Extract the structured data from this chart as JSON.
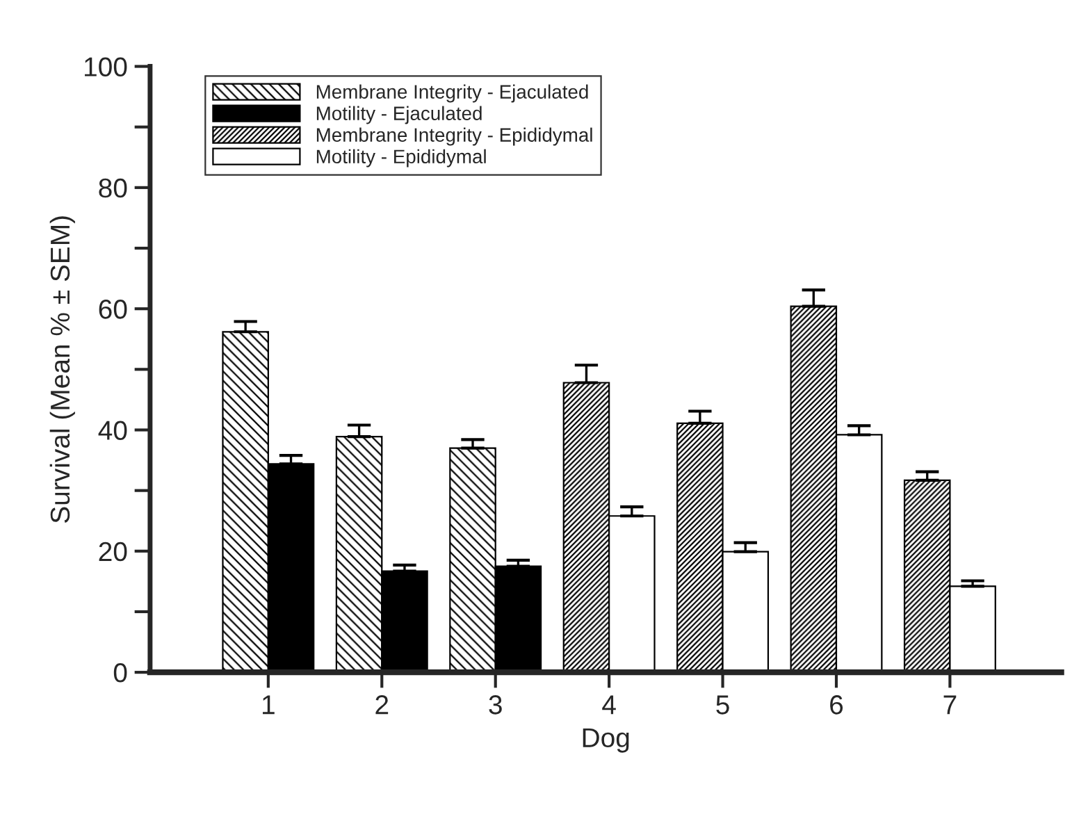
{
  "chart_data": {
    "type": "bar",
    "xlabel": "Dog",
    "ylabel": "Survival (Mean % ± SEM)",
    "categories": [
      "1",
      "2",
      "3",
      "4",
      "5",
      "6",
      "7"
    ],
    "series": [
      {
        "name": "Membrane Integrity - Ejaculated",
        "color": "#000000",
        "values": [
          56.2,
          38.9,
          37.0,
          null,
          null,
          null,
          null
        ],
        "errors": [
          [
            56.2,
            57.9
          ],
          [
            38.9,
            40.8
          ],
          [
            37.0,
            38.4
          ],
          null,
          null,
          null,
          null
        ]
      },
      {
        "name": "Motility - Ejaculated",
        "color": "#000000",
        "values": [
          34.4,
          16.7,
          17.5,
          null,
          null,
          null,
          null
        ],
        "errors": [
          [
            34.4,
            35.8
          ],
          [
            16.7,
            17.7
          ],
          [
            17.5,
            18.5
          ],
          null,
          null,
          null,
          null
        ]
      },
      {
        "name": "Membrane Integrity - Epididymal",
        "color": "#000000",
        "values": [
          null,
          null,
          null,
          47.8,
          41.1,
          60.4,
          31.7
        ],
        "errors": [
          null,
          null,
          null,
          [
            47.8,
            50.7
          ],
          [
            41.1,
            43.1
          ],
          [
            60.4,
            63.1
          ],
          [
            31.7,
            33.1
          ]
        ]
      },
      {
        "name": "Motility - Epididymal",
        "color": "#ffffff",
        "values": [
          null,
          null,
          null,
          25.8,
          19.9,
          39.2,
          14.2
        ],
        "errors": [
          null,
          null,
          null,
          [
            25.8,
            27.3
          ],
          [
            19.9,
            21.4
          ],
          [
            39.2,
            40.7
          ],
          [
            14.2,
            15.1
          ]
        ]
      }
    ],
    "ylim": [
      0,
      100
    ],
    "yticks": [
      0,
      {
        "value": 10,
        "label": null
      },
      20,
      {
        "value": 30,
        "label": null
      },
      40,
      {
        "value": 50,
        "label": null
      },
      60,
      {
        "value": 70,
        "label": null
      },
      80,
      {
        "value": 90,
        "label": null
      },
      100
    ],
    "grid": false,
    "legend": "top left"
  }
}
